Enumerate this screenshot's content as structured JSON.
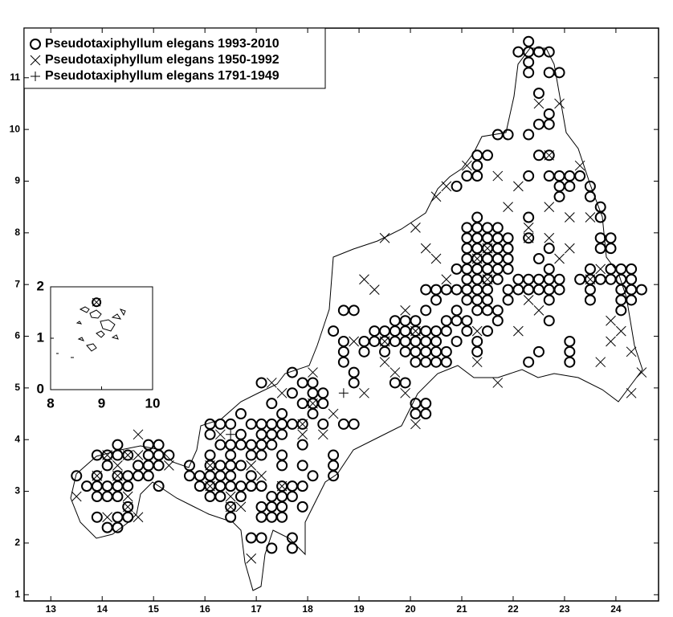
{
  "chart_data": {
    "type": "scatter",
    "xlim": [
      12.48,
      24.83
    ],
    "ylim": [
      0.88,
      11.96
    ],
    "xticks": [
      13,
      14,
      15,
      16,
      17,
      18,
      19,
      20,
      21,
      22,
      23,
      24
    ],
    "yticks": [
      1,
      2,
      3,
      4,
      5,
      6,
      7,
      8,
      9,
      10,
      11
    ],
    "legend": "upper left",
    "series": [
      {
        "name": "Pseudotaxiphyllum elegans 1993-2010",
        "marker": "circle",
        "color": "#000000",
        "x": [
          13.5,
          13.7,
          13.9,
          13.9,
          13.9,
          13.9,
          13.9,
          14.1,
          14.1,
          14.1,
          14.1,
          14.1,
          14.3,
          14.3,
          14.3,
          14.3,
          14.3,
          14.3,
          14.3,
          14.5,
          14.5,
          14.5,
          14.5,
          14.5,
          14.7,
          14.7,
          14.9,
          14.9,
          14.9,
          14.9,
          15.1,
          15.1,
          15.1,
          15.1,
          15.3,
          15.7,
          15.7,
          15.9,
          15.9,
          16.1,
          16.1,
          16.1,
          16.1,
          16.1,
          16.1,
          16.1,
          16.3,
          16.3,
          16.3,
          16.3,
          16.3,
          16.3,
          16.5,
          16.5,
          16.5,
          16.5,
          16.5,
          16.5,
          16.5,
          16.5,
          16.7,
          16.7,
          16.7,
          16.7,
          16.7,
          16.7,
          16.9,
          16.9,
          16.9,
          16.9,
          16.9,
          16.9,
          17.1,
          17.1,
          17.1,
          17.1,
          17.1,
          17.1,
          17.1,
          17.1,
          17.1,
          17.3,
          17.3,
          17.3,
          17.3,
          17.3,
          17.3,
          17.3,
          17.3,
          17.5,
          17.5,
          17.5,
          17.5,
          17.5,
          17.5,
          17.5,
          17.5,
          17.5,
          17.7,
          17.7,
          17.7,
          17.7,
          17.7,
          17.7,
          17.7,
          17.9,
          17.9,
          17.9,
          17.9,
          17.9,
          17.9,
          17.9,
          18.1,
          18.1,
          18.1,
          18.1,
          18.1,
          18.3,
          18.3,
          18.3,
          18.5,
          18.5,
          18.5,
          18.5,
          18.7,
          18.7,
          18.7,
          18.7,
          18.7,
          18.9,
          18.9,
          18.9,
          18.9,
          19.1,
          19.1,
          19.3,
          19.3,
          19.5,
          19.5,
          19.5,
          19.7,
          19.7,
          19.7,
          19.7,
          19.9,
          19.9,
          19.9,
          19.9,
          19.9,
          20.1,
          20.1,
          20.1,
          20.1,
          20.1,
          20.1,
          20.1,
          20.3,
          20.3,
          20.3,
          20.3,
          20.3,
          20.3,
          20.3,
          20.3,
          20.5,
          20.5,
          20.5,
          20.5,
          20.5,
          20.5,
          20.7,
          20.7,
          20.7,
          20.7,
          20.7,
          20.9,
          20.9,
          20.9,
          20.9,
          20.9,
          20.9,
          21.1,
          21.1,
          21.1,
          21.1,
          21.1,
          21.1,
          21.1,
          21.1,
          21.1,
          21.1,
          21.1,
          21.3,
          21.3,
          21.3,
          21.3,
          21.3,
          21.3,
          21.3,
          21.3,
          21.3,
          21.3,
          21.3,
          21.3,
          21.3,
          21.3,
          21.3,
          21.5,
          21.5,
          21.5,
          21.5,
          21.5,
          21.5,
          21.5,
          21.5,
          21.5,
          21.5,
          21.5,
          21.7,
          21.7,
          21.7,
          21.7,
          21.7,
          21.7,
          21.7,
          21.7,
          21.7,
          21.9,
          21.9,
          21.9,
          21.9,
          21.9,
          21.9,
          21.9,
          22.1,
          22.1,
          22.1,
          22.3,
          22.3,
          22.3,
          22.3,
          22.3,
          22.3,
          22.3,
          22.3,
          22.3,
          22.3,
          22.3,
          22.5,
          22.5,
          22.5,
          22.5,
          22.5,
          22.5,
          22.5,
          22.5,
          22.7,
          22.7,
          22.7,
          22.7,
          22.7,
          22.7,
          22.7,
          22.7,
          22.7,
          22.7,
          22.7,
          22.7,
          22.9,
          22.9,
          22.9,
          22.9,
          22.9,
          22.9,
          23.1,
          23.1,
          23.1,
          23.1,
          23.1,
          23.3,
          23.3,
          23.5,
          23.5,
          23.5,
          23.5,
          23.5,
          23.5,
          23.7,
          23.7,
          23.7,
          23.7,
          23.7,
          23.9,
          23.9,
          23.9,
          23.9,
          24.1,
          24.1,
          24.1,
          24.1,
          24.1,
          24.3,
          24.3,
          24.3,
          24.3,
          24.5
        ],
        "y": [
          3.3,
          3.1,
          3.7,
          3.3,
          3.1,
          2.9,
          2.5,
          3.7,
          3.5,
          3.1,
          2.9,
          2.3,
          3.9,
          3.7,
          3.3,
          3.1,
          2.9,
          2.5,
          2.3,
          3.7,
          3.3,
          3.1,
          2.7,
          2.5,
          3.5,
          3.3,
          3.9,
          3.7,
          3.5,
          3.3,
          3.9,
          3.7,
          3.5,
          3.1,
          3.7,
          3.5,
          3.3,
          3.3,
          3.1,
          4.3,
          4.1,
          3.7,
          3.5,
          3.3,
          3.1,
          2.9,
          4.3,
          3.9,
          3.5,
          3.3,
          3.1,
          2.9,
          4.3,
          3.9,
          3.7,
          3.5,
          3.3,
          3.1,
          2.7,
          2.5,
          4.5,
          4.1,
          3.9,
          3.5,
          3.1,
          2.9,
          4.3,
          3.9,
          3.7,
          3.3,
          3.1,
          2.1,
          5.1,
          4.3,
          4.1,
          3.9,
          3.7,
          3.1,
          2.7,
          2.5,
          2.1,
          4.7,
          4.3,
          4.1,
          3.9,
          2.9,
          2.7,
          2.5,
          1.9,
          4.5,
          4.3,
          4.1,
          3.7,
          3.5,
          3.1,
          2.9,
          2.7,
          2.5,
          5.3,
          4.9,
          4.3,
          3.1,
          2.9,
          2.1,
          1.9,
          5.1,
          4.7,
          4.3,
          3.9,
          3.5,
          3.1,
          2.7,
          5.1,
          4.9,
          4.7,
          4.5,
          3.3,
          4.9,
          4.7,
          4.3,
          6.1,
          3.7,
          3.5,
          3.3,
          6.5,
          5.9,
          5.7,
          5.5,
          4.3,
          6.5,
          5.3,
          5.1,
          4.3,
          5.9,
          5.7,
          6.1,
          5.9,
          6.1,
          5.9,
          5.7,
          6.3,
          6.1,
          5.9,
          5.1,
          6.3,
          6.1,
          5.9,
          5.7,
          5.1,
          6.3,
          6.1,
          5.9,
          5.7,
          5.5,
          4.7,
          4.5,
          6.9,
          6.5,
          6.1,
          5.9,
          5.7,
          5.5,
          4.7,
          4.5,
          6.9,
          6.7,
          6.1,
          5.9,
          5.7,
          5.5,
          6.9,
          6.3,
          6.1,
          5.7,
          5.5,
          8.9,
          7.3,
          6.9,
          6.5,
          6.3,
          5.9,
          9.1,
          8.1,
          7.9,
          7.7,
          7.5,
          7.3,
          7.1,
          6.9,
          6.7,
          6.3,
          6.1,
          9.5,
          9.3,
          9.1,
          8.3,
          8.1,
          7.9,
          7.7,
          7.5,
          7.3,
          7.1,
          6.9,
          6.7,
          6.5,
          5.9,
          5.7,
          9.5,
          8.1,
          7.9,
          7.7,
          7.5,
          7.3,
          7.1,
          6.9,
          6.7,
          6.5,
          6.1,
          9.9,
          8.1,
          7.9,
          7.7,
          7.5,
          7.3,
          7.1,
          6.5,
          6.3,
          9.9,
          7.9,
          7.7,
          7.5,
          7.3,
          6.9,
          6.7,
          11.5,
          7.1,
          6.9,
          11.7,
          11.5,
          11.3,
          11.1,
          9.9,
          9.1,
          8.3,
          7.9,
          7.1,
          6.9,
          5.5,
          11.5,
          10.7,
          10.1,
          9.5,
          7.5,
          7.1,
          6.9,
          5.7,
          11.5,
          11.1,
          10.3,
          10.1,
          9.5,
          9.1,
          7.7,
          7.3,
          7.1,
          6.9,
          6.7,
          6.3,
          11.1,
          9.1,
          8.9,
          8.7,
          7.1,
          6.9,
          9.1,
          8.9,
          5.9,
          5.7,
          5.5,
          9.1,
          7.1,
          8.9,
          8.7,
          7.3,
          7.1,
          6.9,
          6.7,
          8.5,
          8.3,
          7.9,
          7.7,
          7.1,
          7.9,
          7.7,
          7.3,
          7.1,
          7.3,
          7.1,
          6.9,
          6.7,
          6.5,
          7.3,
          7.1,
          6.9,
          6.7,
          6.9
        ]
      },
      {
        "name": "Pseudotaxiphyllum elegans 1950-1992",
        "marker": "x",
        "color": "#000000",
        "x": [
          13.5,
          13.9,
          14.1,
          14.1,
          14.3,
          14.5,
          14.5,
          14.7,
          14.7,
          14.7,
          15.3,
          16.1,
          16.1,
          16.3,
          16.5,
          16.7,
          16.9,
          16.9,
          17.1,
          17.3,
          17.5,
          17.9,
          18.1,
          18.3,
          18.5,
          18.9,
          19.1,
          19.1,
          19.3,
          19.5,
          19.5,
          19.7,
          19.9,
          19.9,
          20.1,
          20.1,
          20.3,
          20.5,
          20.5,
          20.7,
          20.7,
          21.1,
          21.3,
          21.3,
          21.5,
          21.7,
          21.7,
          21.9,
          22.1,
          22.1,
          22.3,
          22.3,
          22.5,
          22.5,
          22.7,
          22.7,
          22.9,
          22.9,
          23.1,
          23.1,
          23.3,
          23.5,
          23.7,
          23.7,
          23.9,
          23.9,
          24.1,
          24.3,
          24.3,
          24.5,
          14.3,
          14.5,
          16.5,
          17.5,
          17.9,
          18.1,
          19.5,
          20.1,
          21.3,
          21.5,
          22.3,
          22.7,
          23.5
        ],
        "y": [
          2.9,
          3.3,
          3.7,
          2.5,
          3.5,
          3.7,
          2.9,
          4.1,
          3.7,
          2.5,
          3.5,
          3.5,
          3.1,
          4.1,
          2.9,
          2.7,
          3.5,
          1.7,
          3.3,
          5.1,
          4.9,
          4.1,
          5.3,
          4.1,
          4.5,
          5.9,
          7.1,
          4.9,
          6.9,
          7.9,
          5.5,
          5.3,
          6.5,
          4.9,
          8.1,
          4.3,
          7.7,
          8.7,
          7.5,
          8.9,
          7.1,
          9.3,
          6.1,
          5.5,
          7.1,
          9.1,
          5.1,
          8.5,
          8.9,
          6.1,
          8.1,
          6.7,
          10.5,
          6.5,
          8.5,
          7.9,
          10.5,
          7.5,
          8.3,
          7.7,
          9.3,
          8.3,
          7.3,
          5.5,
          6.3,
          5.9,
          6.1,
          5.7,
          4.9,
          5.3,
          3.3,
          2.7,
          2.7,
          3.1,
          4.3,
          4.7,
          5.9,
          6.1,
          7.5,
          7.7,
          7.9,
          9.5,
          7.1
        ]
      },
      {
        "name": "Pseudotaxiphyllum elegans 1791-1949",
        "marker": "plus",
        "color": "#000000",
        "x": [
          16.5,
          18.7
        ],
        "y": [
          4.1,
          4.9
        ]
      }
    ],
    "inset": {
      "xlim": [
        8,
        10
      ],
      "ylim": [
        0,
        2
      ],
      "xticks": [
        8,
        9,
        10
      ],
      "yticks": [
        0,
        1,
        2
      ],
      "series": [
        {
          "marker": "circle",
          "color": "#000000",
          "x": [
            8.9
          ],
          "y": [
            1.7
          ]
        },
        {
          "marker": "x",
          "color": "#000000",
          "x": [
            8.9
          ],
          "y": [
            1.7
          ]
        }
      ]
    }
  }
}
